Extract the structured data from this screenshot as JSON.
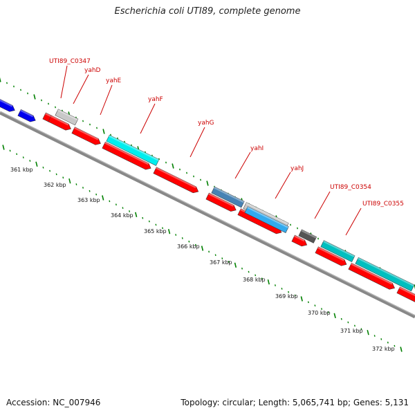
{
  "title": "Escherichia coli UTI89, complete genome",
  "footer": {
    "accession": "Accession: NC_007946",
    "summary": "Topology: circular; Length: 5,065,741 bp; Genes: 5,131"
  },
  "colors": {
    "forward_cds": "#ff0000",
    "backbone": "#888888",
    "tick_green": "#008000",
    "label_red": "#cc0000",
    "blue": "#0000ee",
    "cyan": "#00eeee",
    "teal": "#00bfbf",
    "steelblue": "#4682b4",
    "lightgray": "#c8c8c8",
    "darkgray": "#555555",
    "skyblue": "#33aaee"
  },
  "gene_labels": [
    "UTI89_C0347",
    "yahD",
    "yahE",
    "yahF",
    "yahG",
    "yahI",
    "yahJ",
    "UTI89_C0354",
    "UTI89_C0355"
  ],
  "kbp_labels": [
    "361 kbp",
    "362 kbp",
    "363 kbp",
    "364 kbp",
    "365 kbp",
    "366 kbp",
    "367 kbp",
    "368 kbp",
    "369 kbp",
    "370 kbp",
    "371 kbp",
    "372 kbp"
  ]
}
